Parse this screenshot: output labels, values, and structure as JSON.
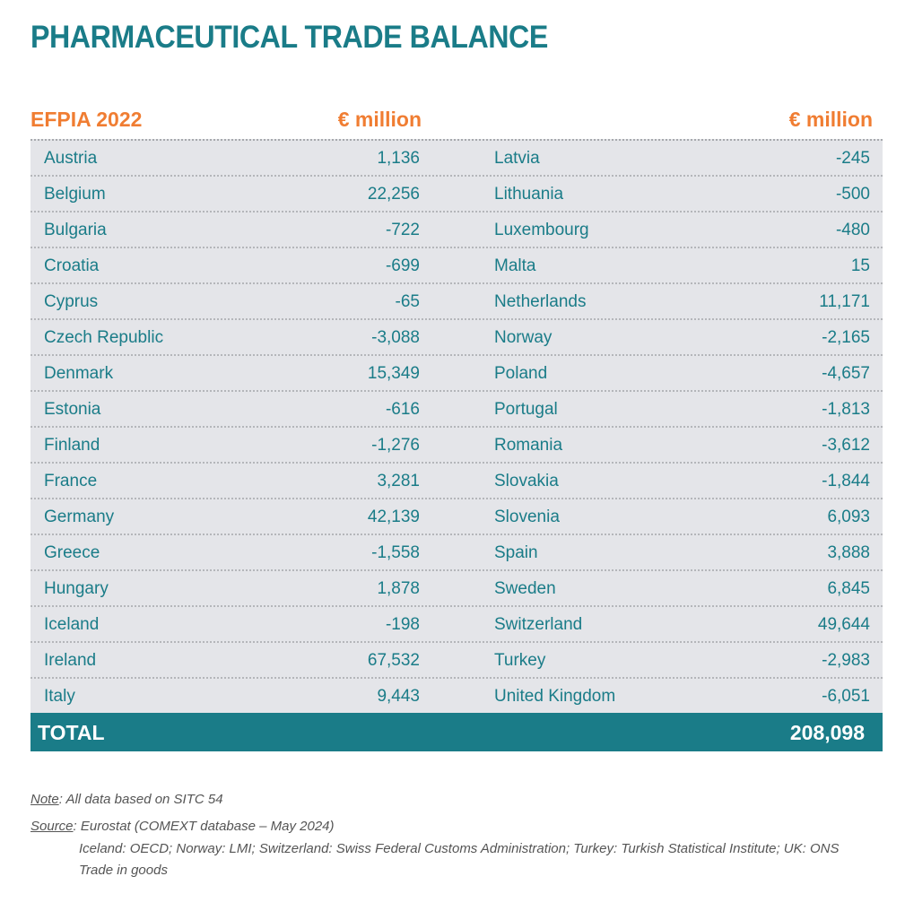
{
  "title": "PHARMACEUTICAL TRADE BALANCE",
  "header": {
    "left_label": "EFPIA 2022",
    "left_unit": "€ million",
    "right_unit": "€ million"
  },
  "left": [
    [
      "Austria",
      "1,136"
    ],
    [
      "Belgium",
      "22,256"
    ],
    [
      "Bulgaria",
      "-722"
    ],
    [
      "Croatia",
      "-699"
    ],
    [
      "Cyprus",
      "-65"
    ],
    [
      "Czech Republic",
      "-3,088"
    ],
    [
      "Denmark",
      "15,349"
    ],
    [
      "Estonia",
      "-616"
    ],
    [
      "Finland",
      "-1,276"
    ],
    [
      "France",
      "3,281"
    ],
    [
      "Germany",
      "42,139"
    ],
    [
      "Greece",
      "-1,558"
    ],
    [
      "Hungary",
      "1,878"
    ],
    [
      "Iceland",
      "-198"
    ],
    [
      "Ireland",
      "67,532"
    ],
    [
      "Italy",
      "9,443"
    ]
  ],
  "right": [
    [
      "Latvia",
      "-245"
    ],
    [
      "Lithuania",
      "-500"
    ],
    [
      "Luxembourg",
      "-480"
    ],
    [
      "Malta",
      "15"
    ],
    [
      "Netherlands",
      "11,171"
    ],
    [
      "Norway",
      "-2,165"
    ],
    [
      "Poland",
      "-4,657"
    ],
    [
      "Portugal",
      "-1,813"
    ],
    [
      "Romania",
      "-3,612"
    ],
    [
      "Slovakia",
      "-1,844"
    ],
    [
      "Slovenia",
      "6,093"
    ],
    [
      "Spain",
      "3,888"
    ],
    [
      "Sweden",
      "6,845"
    ],
    [
      "Switzerland",
      "49,644"
    ],
    [
      "Turkey",
      "-2,983"
    ],
    [
      "United Kingdom",
      "-6,051"
    ]
  ],
  "total": {
    "label": "TOTAL",
    "value": "208,098"
  },
  "notes": {
    "note_label": "Note",
    "note_text": ": All data based on SITC 54",
    "source_label": "Source",
    "source_text": ": Eurostat (COMEXT database – May 2024)",
    "source_line2": "Iceland: OECD; Norway: LMI; Switzerland: Swiss Federal Customs Administration; Turkey: Turkish Statistical Institute; UK: ONS",
    "source_line3": "Trade in goods"
  }
}
